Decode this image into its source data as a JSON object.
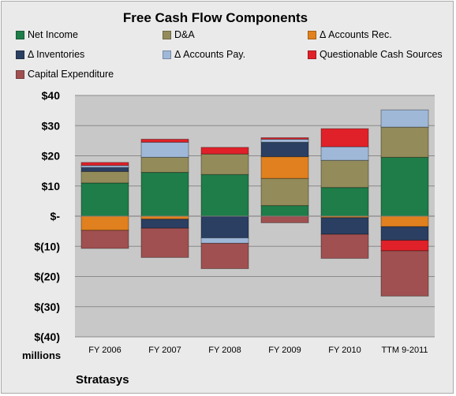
{
  "chart_data": {
    "type": "bar",
    "stacked": true,
    "title": "Free Cash Flow Components",
    "categories": [
      "FY 2006",
      "FY 2007",
      "FY 2008",
      "FY 2009",
      "FY 2010",
      "TTM 9-2011"
    ],
    "y_tick_labels": [
      "$40",
      "$30",
      "$20",
      "$10",
      "$-",
      "$(10)",
      "$(20)",
      "$(30)",
      "$(40)"
    ],
    "ylim": [
      -40,
      40
    ],
    "y_unit_label": "millions",
    "grid": true,
    "legend_position": "top",
    "series": [
      {
        "name": "Net Income",
        "color": "#1e7d48",
        "values": [
          11,
          14.5,
          13.8,
          3.5,
          9.5,
          19.5
        ]
      },
      {
        "name": "D&A",
        "color": "#938b5a",
        "values": [
          3.8,
          5,
          6.8,
          9,
          9,
          10
        ]
      },
      {
        "name": "Δ Accounts Rec.",
        "color": "#e0801e",
        "values": [
          -4.7,
          -1,
          0,
          7.2,
          -0.5,
          -3.5
        ]
      },
      {
        "name": "Δ Inventories",
        "color": "#2a3f62",
        "values": [
          1.3,
          -3,
          -7.2,
          4.8,
          -5.5,
          -4.5
        ]
      },
      {
        "name": "Δ Accounts Pay.",
        "color": "#9fb8d8",
        "values": [
          0.7,
          5,
          -1.8,
          1,
          4.5,
          5.7
        ]
      },
      {
        "name": "Questionable Cash Sources",
        "color": "#e02129",
        "values": [
          1,
          1,
          2.2,
          0.5,
          6,
          -3.5
        ]
      },
      {
        "name": "Capital Expenditure",
        "color": "#a05050",
        "values": [
          -6,
          -9.7,
          -8.4,
          -2.2,
          -8,
          -15
        ]
      }
    ]
  },
  "footer": {
    "units": "millions",
    "company": "Stratasys"
  }
}
